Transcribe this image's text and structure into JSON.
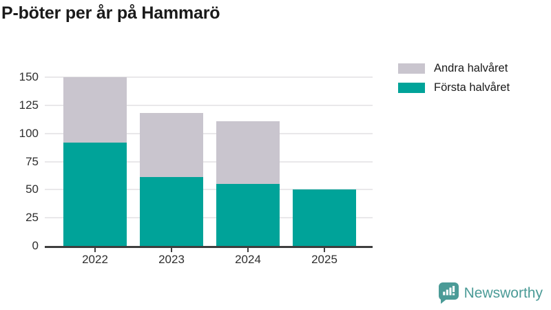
{
  "title": "P-böter per år på Hammarö",
  "legend": [
    {
      "label": "Andra halvåret",
      "color": "#c9c5ce"
    },
    {
      "label": "Första halvåret",
      "color": "#00a399"
    }
  ],
  "chart_data": {
    "type": "bar",
    "stacked": true,
    "title": "P-böter per år på Hammarö",
    "categories": [
      "2022",
      "2023",
      "2024",
      "2025"
    ],
    "series": [
      {
        "name": "Första halvåret",
        "color": "#00a399",
        "values": [
          92,
          61,
          55,
          50
        ]
      },
      {
        "name": "Andra halvåret",
        "color": "#c9c5ce",
        "values": [
          58,
          57,
          56,
          0
        ]
      }
    ],
    "xlabel": "",
    "ylabel": "",
    "ylim": [
      0,
      150
    ],
    "yticks": [
      0,
      25,
      50,
      75,
      100,
      125,
      150
    ],
    "grid": true,
    "legend_position": "top-right"
  },
  "colors": {
    "first_half": "#00a399",
    "second_half": "#c9c5ce",
    "gridline": "#e9e8ea",
    "axis": "#3e3e3e",
    "text": "#1a1a1a",
    "brand": "#4b9b97"
  },
  "branding": {
    "logo_text": "Newsworthy",
    "logo_icon": "bar-chart-speech-bubble-icon"
  }
}
